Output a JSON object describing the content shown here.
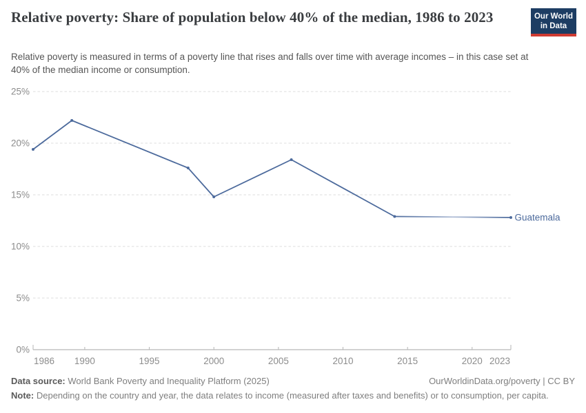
{
  "header": {
    "title": "Relative poverty: Share of population below 40% of the median, 1986 to 2023",
    "subtitle": "Relative poverty is measured in terms of a poverty line that rises and falls over time with average incomes – in this case set at 40% of the median income or consumption.",
    "logo": {
      "line1": "Our World",
      "line2": "in Data",
      "bg_color": "#1d3d63",
      "accent_color": "#cf3b32"
    }
  },
  "chart_data": {
    "type": "line",
    "title": "Relative poverty: Share of population below 40% of the median, 1986 to 2023",
    "xlabel": "",
    "ylabel": "",
    "xlim": [
      1986,
      2023
    ],
    "ylim": [
      0,
      25
    ],
    "x_ticks": [
      1986,
      1990,
      1995,
      2000,
      2005,
      2010,
      2015,
      2020,
      2023
    ],
    "y_ticks": [
      0,
      5,
      10,
      15,
      20,
      25
    ],
    "y_tick_suffix": "%",
    "grid": "horizontal-dashed",
    "legend_position": "line-end-label",
    "series": [
      {
        "name": "Guatemala",
        "color": "#4c6a9c",
        "faded_mid_color": "#b3c0d8",
        "x": [
          1986,
          1989,
          1998,
          2000,
          2006,
          2014,
          2023
        ],
        "values": [
          19.4,
          22.2,
          17.6,
          14.8,
          18.4,
          12.9,
          12.8
        ],
        "faded_segment_from_x": 2014
      }
    ]
  },
  "footer": {
    "source_label": "Data source:",
    "source_text": "World Bank Poverty and Inequality Platform (2025)",
    "attribution": "OurWorldinData.org/poverty | CC BY",
    "note_label": "Note:",
    "note_text": "Depending on the country and year, the data relates to income (measured after taxes and benefits) or to consumption, per capita."
  }
}
